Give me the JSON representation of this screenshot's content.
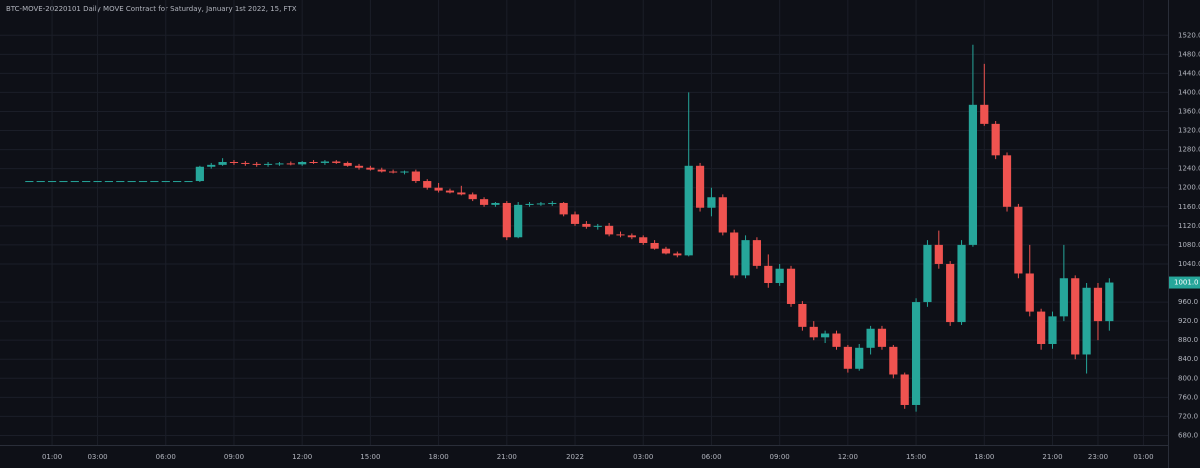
{
  "chart_data": {
    "type": "candlestick",
    "title": "BTC-MOVE-20220101 Daily MOVE Contract for Saturday, January 1st 2022, 15, FTX",
    "up_color": "#26a69a",
    "down_color": "#ef5350",
    "grid": true,
    "last_label": "1001.0",
    "x": [
      0,
      0.5,
      1,
      1.5,
      2,
      2.5,
      3,
      3.5,
      4,
      4.5,
      5,
      5.5,
      6,
      6.5,
      7,
      7.5,
      8,
      8.5,
      9,
      9.5,
      10,
      10.5,
      11,
      11.5,
      12,
      12.5,
      13,
      13.5,
      14,
      14.5,
      15,
      15.5,
      16,
      16.5,
      17,
      17.5,
      18,
      18.5,
      19,
      19.5,
      20,
      20.5,
      21,
      21.5,
      22,
      22.5,
      23,
      23.5,
      24,
      24.5,
      25,
      25.5,
      26,
      26.5,
      27,
      27.5,
      28,
      28.5,
      29,
      29.5,
      30,
      30.5,
      31,
      31.5,
      32,
      32.5,
      33,
      33.5,
      34,
      34.5,
      35,
      35.5,
      36,
      36.5,
      37,
      37.5,
      38,
      38.5,
      39,
      39.5,
      40,
      40.5,
      41,
      41.5,
      42,
      42.5,
      43,
      43.5,
      44,
      44.5,
      45,
      45.5,
      46,
      46.5,
      47,
      47.5
    ],
    "open": [
      1214,
      1214,
      1214,
      1214,
      1214,
      1214,
      1214,
      1214,
      1214,
      1214,
      1214,
      1214,
      1214,
      1214,
      1214,
      1214,
      1244,
      1248,
      1254,
      1252,
      1250,
      1248,
      1250,
      1251,
      1249,
      1254,
      1252,
      1255,
      1252,
      1246,
      1242,
      1238,
      1234,
      1233,
      1234,
      1214,
      1200,
      1194,
      1190,
      1186,
      1176,
      1164,
      1168,
      1096,
      1164,
      1166,
      1167,
      1168,
      1144,
      1124,
      1118,
      1120,
      1102,
      1100,
      1096,
      1084,
      1072,
      1062,
      1058,
      1246,
      1158,
      1180,
      1106,
      1016,
      1090,
      1036,
      1000,
      1030,
      956,
      908,
      886,
      894,
      866,
      820,
      864,
      904,
      866,
      808,
      744,
      960,
      1080,
      1040,
      918,
      1080,
      1374,
      1334,
      1268,
      1160,
      1020,
      940,
      872,
      930,
      1010,
      850,
      990,
      920
    ],
    "high": [
      1214,
      1214,
      1214,
      1214,
      1214,
      1214,
      1214,
      1214,
      1214,
      1214,
      1214,
      1214,
      1214,
      1214,
      1214,
      1246,
      1252,
      1262,
      1258,
      1256,
      1254,
      1254,
      1254,
      1255,
      1256,
      1258,
      1258,
      1258,
      1255,
      1250,
      1246,
      1242,
      1238,
      1236,
      1238,
      1218,
      1210,
      1198,
      1204,
      1190,
      1180,
      1170,
      1172,
      1170,
      1170,
      1170,
      1172,
      1170,
      1150,
      1130,
      1124,
      1126,
      1108,
      1104,
      1100,
      1090,
      1076,
      1066,
      1400,
      1252,
      1200,
      1186,
      1112,
      1100,
      1096,
      1060,
      1040,
      1036,
      962,
      920,
      900,
      900,
      870,
      872,
      910,
      910,
      870,
      812,
      968,
      1090,
      1110,
      1046,
      1090,
      1500,
      1460,
      1340,
      1274,
      1166,
      1080,
      946,
      940,
      1080,
      1016,
      1000,
      1000,
      1010
    ],
    "low": [
      1214,
      1214,
      1214,
      1214,
      1214,
      1214,
      1214,
      1214,
      1214,
      1214,
      1214,
      1214,
      1214,
      1214,
      1214,
      1212,
      1240,
      1246,
      1248,
      1246,
      1244,
      1244,
      1246,
      1247,
      1246,
      1250,
      1248,
      1250,
      1244,
      1238,
      1236,
      1232,
      1230,
      1228,
      1210,
      1196,
      1190,
      1188,
      1184,
      1172,
      1160,
      1160,
      1090,
      1094,
      1160,
      1162,
      1162,
      1140,
      1120,
      1114,
      1112,
      1098,
      1096,
      1092,
      1080,
      1070,
      1060,
      1054,
      1056,
      1150,
      1140,
      1100,
      1010,
      1010,
      1030,
      990,
      994,
      950,
      900,
      880,
      874,
      860,
      812,
      816,
      850,
      860,
      800,
      736,
      730,
      950,
      1030,
      910,
      912,
      1076,
      1330,
      1260,
      1150,
      1010,
      930,
      860,
      862,
      920,
      840,
      810,
      880,
      900
    ],
    "close": [
      1214,
      1214,
      1214,
      1214,
      1214,
      1214,
      1214,
      1214,
      1214,
      1214,
      1214,
      1214,
      1214,
      1214,
      1214,
      1244,
      1248,
      1254,
      1252,
      1250,
      1248,
      1250,
      1251,
      1249,
      1254,
      1252,
      1255,
      1252,
      1246,
      1242,
      1238,
      1234,
      1233,
      1234,
      1214,
      1200,
      1194,
      1190,
      1186,
      1176,
      1164,
      1168,
      1096,
      1164,
      1166,
      1167,
      1168,
      1144,
      1124,
      1118,
      1120,
      1102,
      1100,
      1096,
      1084,
      1072,
      1062,
      1058,
      1246,
      1158,
      1180,
      1106,
      1016,
      1090,
      1036,
      1000,
      1030,
      956,
      908,
      886,
      894,
      866,
      820,
      864,
      904,
      866,
      808,
      744,
      960,
      1080,
      1040,
      918,
      1080,
      1374,
      1334,
      1268,
      1160,
      1020,
      940,
      872,
      930,
      1010,
      850,
      990,
      920,
      1001
    ],
    "xlim": [
      -1.29,
      50.08
    ],
    "ylim": [
      660,
      1594
    ],
    "xticks": [
      {
        "value": 1,
        "label": "01:00"
      },
      {
        "value": 3,
        "label": "03:00"
      },
      {
        "value": 6,
        "label": "06:00"
      },
      {
        "value": 9,
        "label": "09:00"
      },
      {
        "value": 12,
        "label": "12:00"
      },
      {
        "value": 15,
        "label": "15:00"
      },
      {
        "value": 18,
        "label": "18:00"
      },
      {
        "value": 21,
        "label": "21:00"
      },
      {
        "value": 24,
        "label": "2022"
      },
      {
        "value": 27,
        "label": "03:00"
      },
      {
        "value": 30,
        "label": "06:00"
      },
      {
        "value": 33,
        "label": "09:00"
      },
      {
        "value": 36,
        "label": "12:00"
      },
      {
        "value": 39,
        "label": "15:00"
      },
      {
        "value": 42,
        "label": "18:00"
      },
      {
        "value": 45,
        "label": "21:00"
      },
      {
        "value": 47,
        "label": "23:00"
      },
      {
        "value": 49,
        "label": "01:00"
      }
    ],
    "yticks": [
      {
        "value": 680,
        "label": "680.0"
      },
      {
        "value": 720,
        "label": "720.0"
      },
      {
        "value": 760,
        "label": "760.0"
      },
      {
        "value": 800,
        "label": "800.0"
      },
      {
        "value": 840,
        "label": "840.0"
      },
      {
        "value": 880,
        "label": "880.0"
      },
      {
        "value": 920,
        "label": "920.0"
      },
      {
        "value": 960,
        "label": "960.0"
      },
      {
        "value": 1040,
        "label": "1040.0"
      },
      {
        "value": 1080,
        "label": "1080.0"
      },
      {
        "value": 1120,
        "label": "1120.0"
      },
      {
        "value": 1160,
        "label": "1160.0"
      },
      {
        "value": 1200,
        "label": "1200.0"
      },
      {
        "value": 1240,
        "label": "1240.0"
      },
      {
        "value": 1280,
        "label": "1280.0"
      },
      {
        "value": 1320,
        "label": "1320.0"
      },
      {
        "value": 1360,
        "label": "1360.0"
      },
      {
        "value": 1400,
        "label": "1400.0"
      },
      {
        "value": 1440,
        "label": "1440.0"
      },
      {
        "value": 1480,
        "label": "1480.0"
      },
      {
        "value": 1520,
        "label": "1520.0"
      }
    ]
  }
}
